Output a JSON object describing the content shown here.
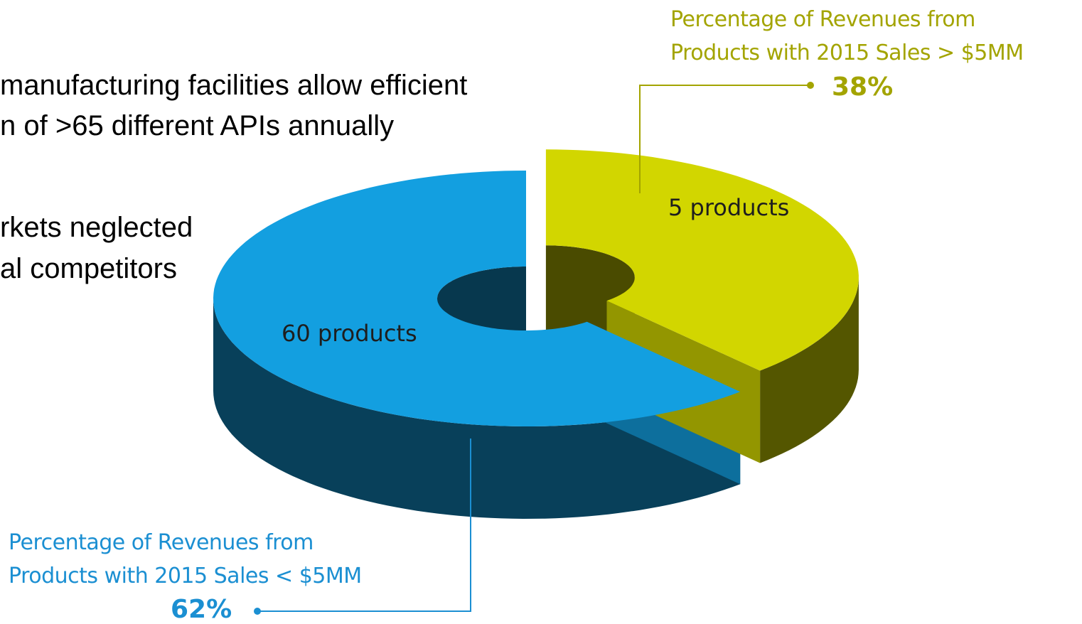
{
  "slide_text": [
    "manufacturing facilities allow efficient",
    "n of >65 different APIs annually",
    "rkets neglected",
    "al competitors"
  ],
  "chart_data": {
    "type": "pie",
    "categories": [
      "Percentage of Revenues from\nProducts with 2015 Sales < $5MM",
      "Percentage of Revenues from\nProducts with 2015 Sales > $5MM"
    ],
    "values": [
      62,
      38
    ],
    "value_labels": [
      "62%",
      "38%"
    ],
    "slice_labels": [
      "60 products",
      "5 products"
    ],
    "colors": [
      "#139fe0",
      "#d2d600"
    ],
    "label_colors": [
      "#1b8fd2",
      "#a3a400"
    ]
  }
}
